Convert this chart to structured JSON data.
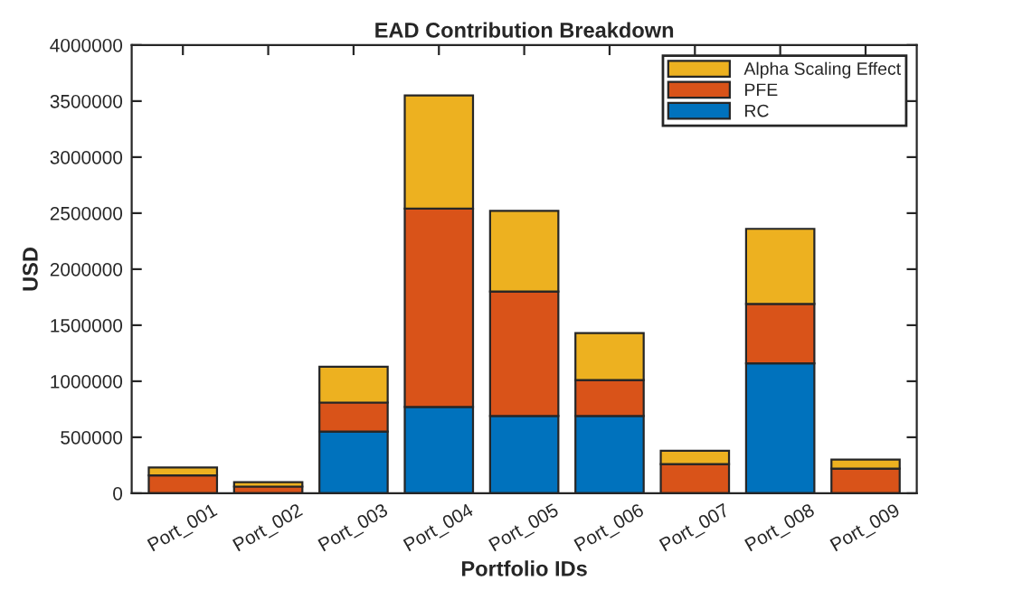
{
  "chart_data": {
    "type": "bar",
    "title": "EAD Contribution Breakdown",
    "xlabel": "Portfolio IDs",
    "ylabel": "USD",
    "categories": [
      "Port_001",
      "Port_002",
      "Port_003",
      "Port_004",
      "Port_005",
      "Port_006",
      "Port_007",
      "Port_008",
      "Port_009"
    ],
    "stacked": true,
    "series": [
      {
        "name": "RC",
        "color": "#0072bd",
        "values": [
          0,
          0,
          550000,
          770000,
          690000,
          690000,
          0,
          1160000,
          0
        ]
      },
      {
        "name": "PFE",
        "color": "#d95319",
        "values": [
          160000,
          60000,
          260000,
          1770000,
          1110000,
          320000,
          260000,
          530000,
          220000
        ]
      },
      {
        "name": "Alpha Scaling Effect",
        "color": "#edb120",
        "values": [
          70000,
          40000,
          320000,
          1010000,
          720000,
          420000,
          120000,
          670000,
          80000
        ]
      }
    ],
    "ylim": [
      0,
      4000000
    ],
    "yticks": [
      0,
      500000,
      1000000,
      1500000,
      2000000,
      2500000,
      3000000,
      3500000,
      4000000
    ],
    "grid": false,
    "legend": "top right"
  }
}
